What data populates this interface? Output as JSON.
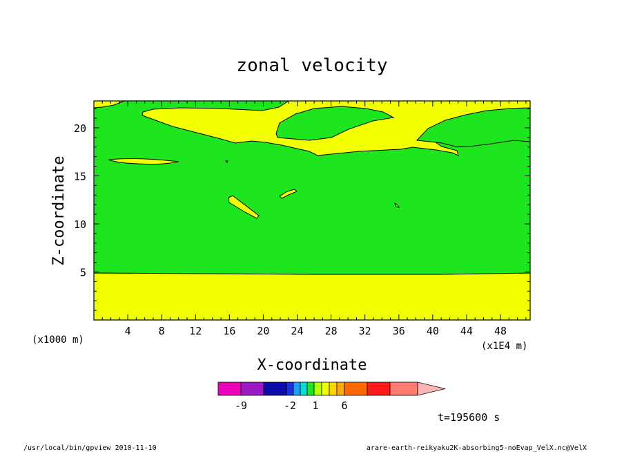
{
  "chart_data": {
    "type": "heatmap",
    "title": "zonal velocity",
    "xlabel": "X-coordinate",
    "ylabel": "Z-coordinate",
    "x_unit_left": "(x1000 m)",
    "x_unit_right": "(x1E4 m)",
    "xlim": [
      0,
      51.5
    ],
    "ylim": [
      0,
      22.8
    ],
    "x_ticks": [
      4,
      8,
      12,
      16,
      20,
      24,
      28,
      32,
      36,
      40,
      44,
      48
    ],
    "x_tick_labels": [
      "4",
      "8",
      "12",
      "16",
      "20",
      "24",
      "28",
      "32",
      "36",
      "40",
      "44",
      "48"
    ],
    "y_ticks": [
      5,
      10,
      15,
      20
    ],
    "y_tick_labels": [
      "5",
      "10",
      "15",
      "20"
    ],
    "fill_colors": {
      "positive_layer": "#f2ff00",
      "mid_layer": "#1ee61e"
    },
    "regions": [
      {
        "label": "lower layer",
        "color": "#f2ff00",
        "z_top": 4.9
      },
      {
        "label": "middle layer",
        "color": "#1ee61e",
        "z_bottom": 4.9,
        "z_top_approx": 18.5
      },
      {
        "label": "upper layer",
        "color": "#f2ff00",
        "z_bottom_approx": 18.5
      }
    ],
    "colorbar": {
      "colors": [
        "#ee00bb",
        "#9a19c5",
        "#0c0aa8",
        "#1a2fe0",
        "#1aa0ff",
        "#00e0d0",
        "#1ee61e",
        "#b4ff00",
        "#f2ff00",
        "#ffd400",
        "#ffaa00",
        "#ff6a00",
        "#ff1a1a",
        "#ff7a70",
        "#ffb4b4"
      ],
      "tick_labels": [
        "-9",
        "-2",
        "1",
        "6"
      ]
    },
    "time_label": "t=195600 s",
    "footer_left": "/usr/local/bin/gpview  2010-11-10",
    "footer_right": "arare-earth-reikyaku2K-absorbing5-noEvap_VelX.nc@VelX"
  }
}
